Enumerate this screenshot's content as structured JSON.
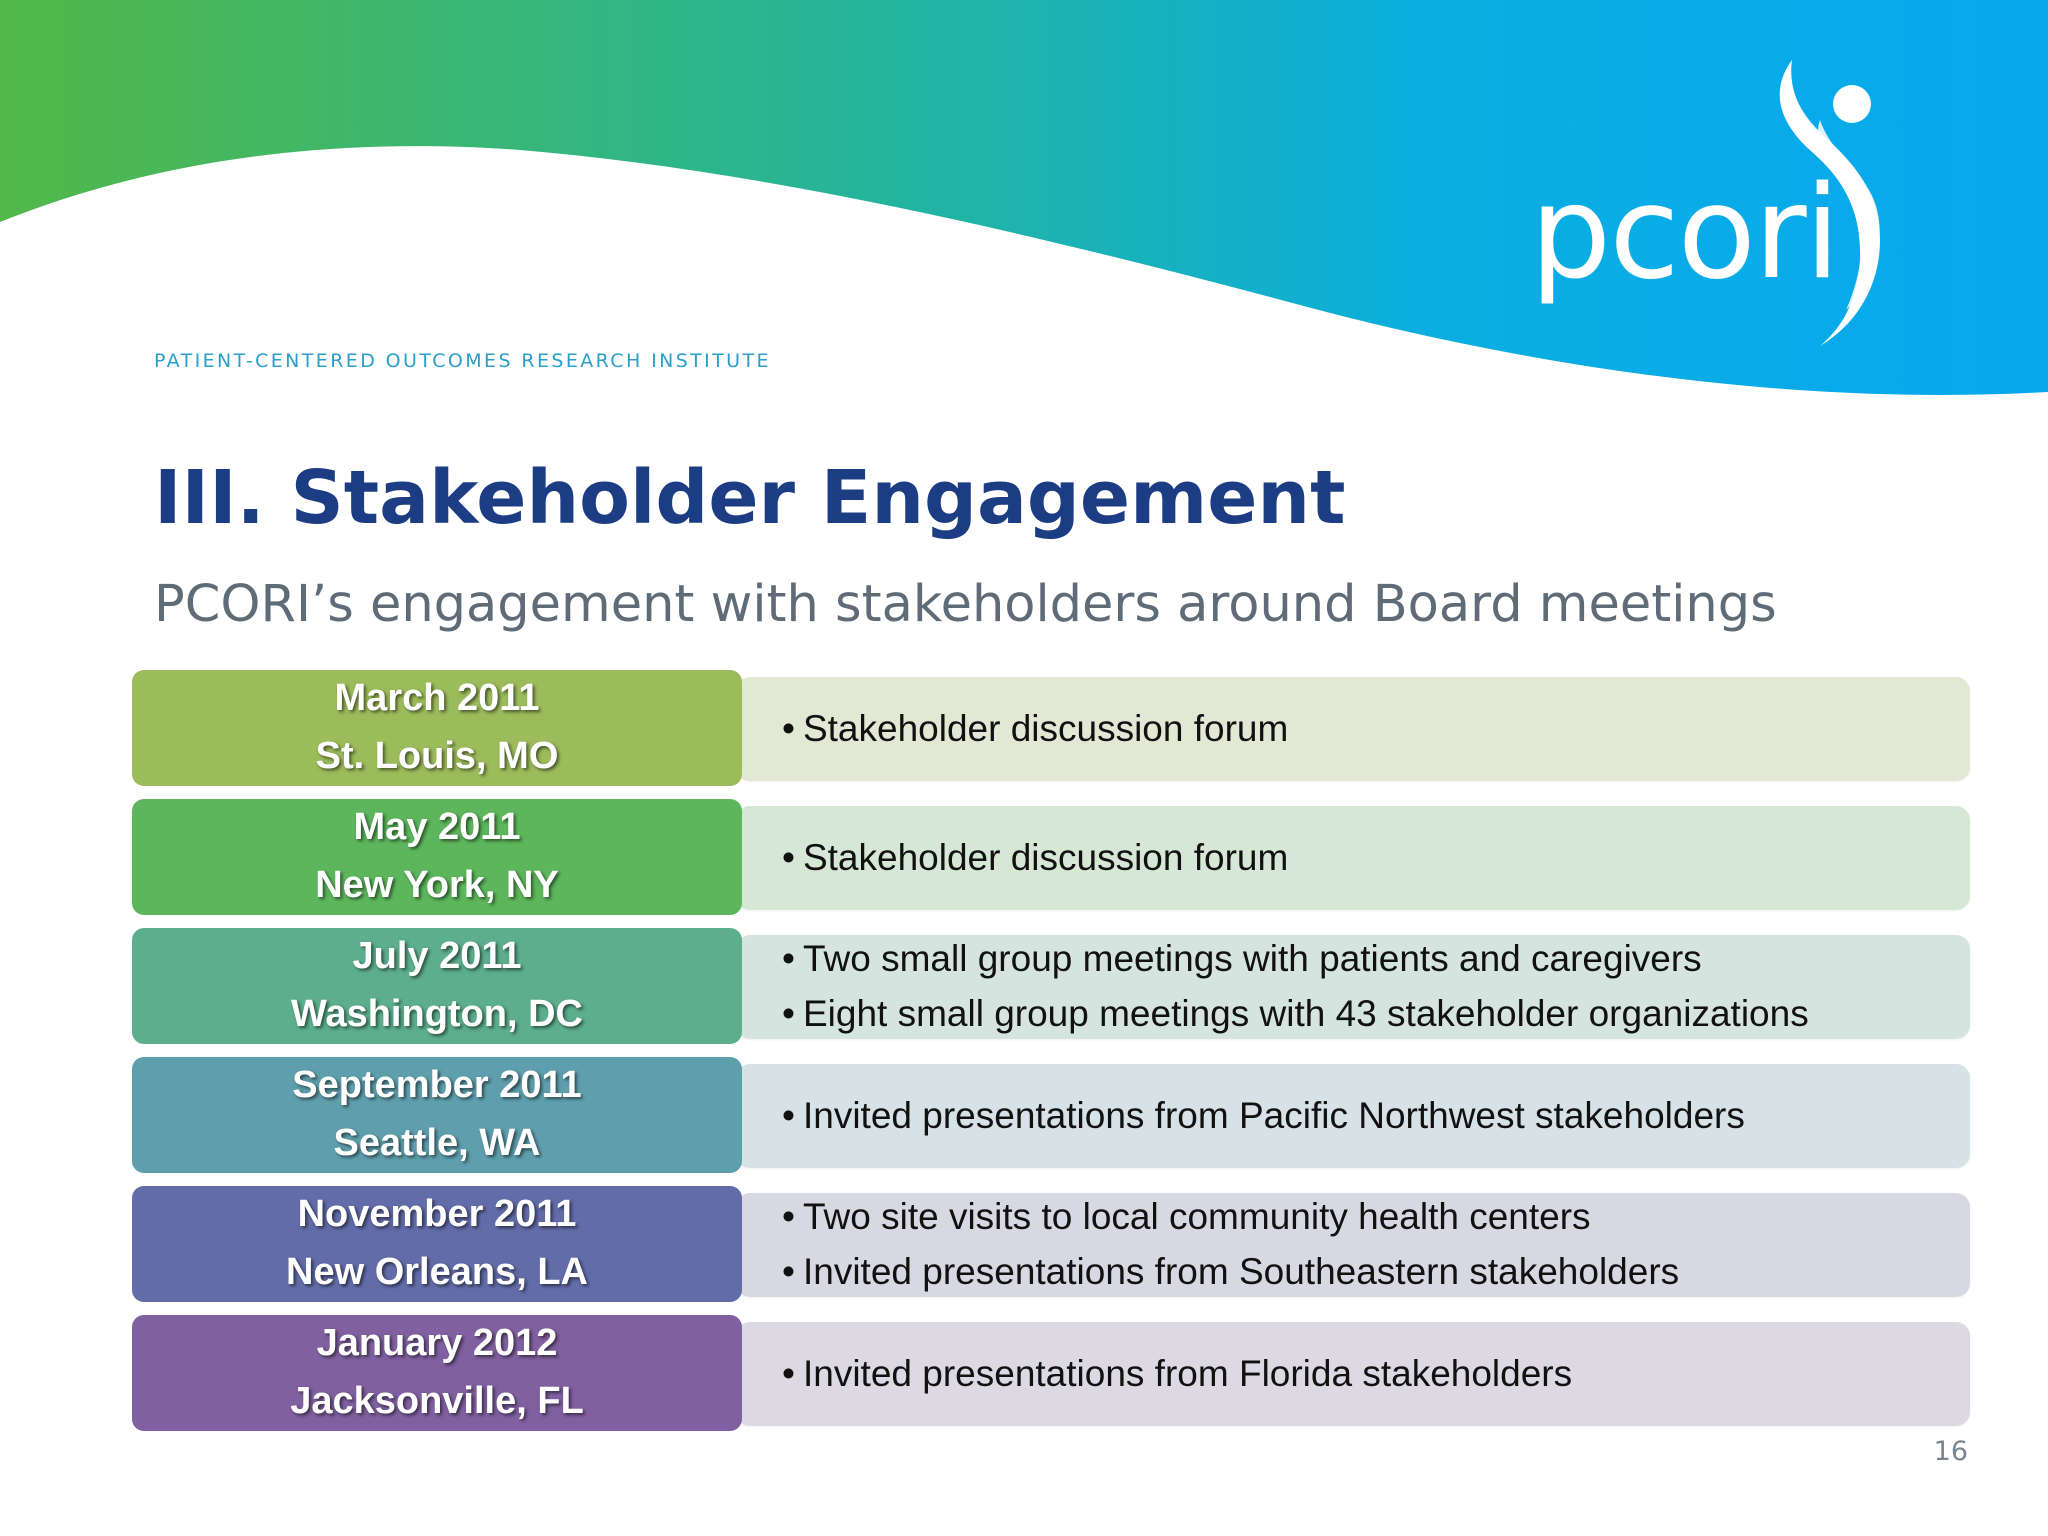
{
  "header": {
    "logo_text": "pcori",
    "institute": "PATIENT-CENTERED OUTCOMES RESEARCH INSTITUTE"
  },
  "title": "III. Stakeholder Engagement",
  "subtitle": "PCORI’s engagement with stakeholders around Board meetings",
  "timeline": [
    {
      "date": "March 2011",
      "location": "St. Louis, MO",
      "color": "#9cbb5b",
      "bg": "#e3e8d4",
      "bullets": [
        "Stakeholder discussion forum"
      ]
    },
    {
      "date": "May 2011",
      "location": "New York, NY",
      "color": "#5db65c",
      "bg": "#d7e7d5",
      "bullets": [
        "Stakeholder discussion forum"
      ]
    },
    {
      "date": "July 2011",
      "location": "Washington, DC",
      "color": "#5cae8d",
      "bg": "#d5e4df",
      "bullets": [
        "Two small group meetings with patients and caregivers",
        "Eight small group meetings with 43 stakeholder organizations"
      ]
    },
    {
      "date": "September 2011",
      "location": "Seattle, WA",
      "color": "#5f9fad",
      "bg": "#d6e2e5",
      "bullets": [
        "Invited presentations from Pacific Northwest stakeholders"
      ]
    },
    {
      "date": "November 2011",
      "location": "New Orleans, LA",
      "color": "#626ca8",
      "bg": "#d8d8e3",
      "bullets": [
        "Two site visits to local community health centers",
        "Invited presentations from Southeastern stakeholders"
      ]
    },
    {
      "date": "January 2012",
      "location": "Jacksonville, FL",
      "color": "#8060a0",
      "bg": "#dcd9e3",
      "bullets": [
        "Invited presentations from Florida stakeholders"
      ]
    }
  ],
  "page_number": "16"
}
